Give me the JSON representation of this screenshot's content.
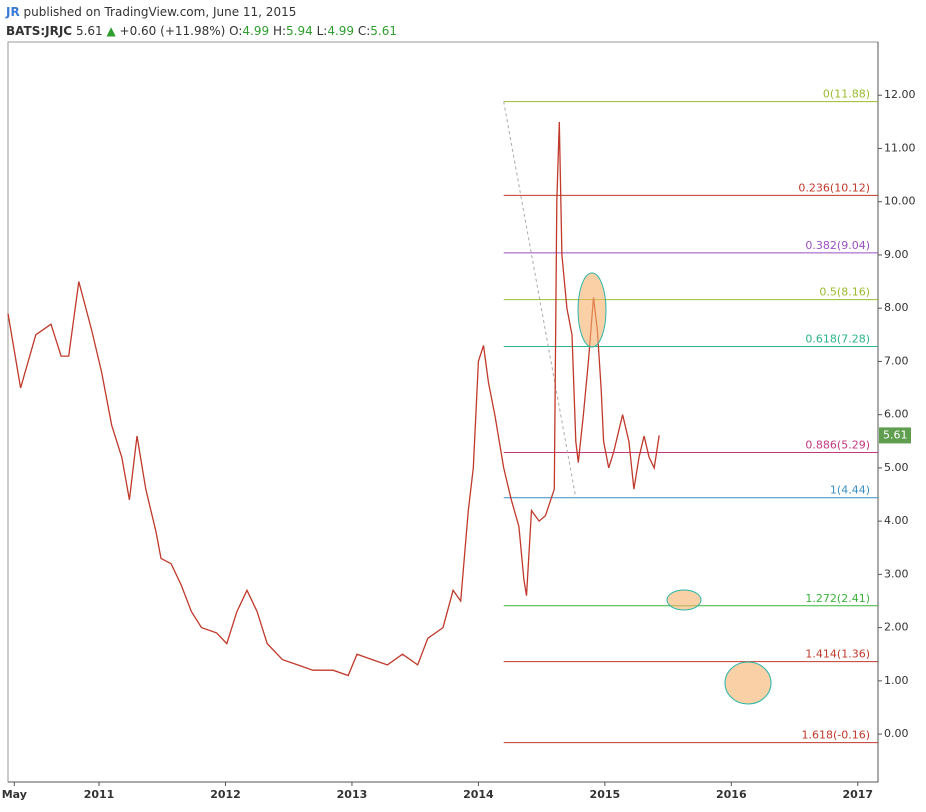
{
  "header": {
    "author": "JR",
    "published": "published on TradingView.com, June 11, 2015",
    "symbol": "BATS:JRJC",
    "last": "5.61",
    "arrow": "▲",
    "change": "+0.60 (+11.98%)",
    "open_label": "O:",
    "open": "4.99",
    "high_label": "H:",
    "high": "5.94",
    "low_label": "L:",
    "low": "4.99",
    "close_label": "C:",
    "close": "5.61"
  },
  "chart_data": {
    "type": "line",
    "x": [
      2010.28,
      2010.38,
      2010.5,
      2010.62,
      2010.7,
      2010.76,
      2010.84,
      2010.94,
      2011.02,
      2011.1,
      2011.18,
      2011.24,
      2011.3,
      2011.37,
      2011.45,
      2011.49,
      2011.57,
      2011.65,
      2011.73,
      2011.81,
      2011.93,
      2012.01,
      2012.09,
      2012.17,
      2012.25,
      2012.33,
      2012.45,
      2012.57,
      2012.69,
      2012.85,
      2012.97,
      2013.04,
      2013.16,
      2013.28,
      2013.4,
      2013.52,
      2013.6,
      2013.72,
      2013.8,
      2013.86,
      2013.92,
      2013.96,
      2014.0,
      2014.04,
      2014.08,
      2014.13,
      2014.2,
      2014.26,
      2014.32,
      2014.36,
      2014.38,
      2014.42,
      2014.48,
      2014.53,
      2014.6,
      2014.62,
      2014.64,
      2014.66,
      2014.7,
      2014.74,
      2014.77,
      2014.79,
      2014.83,
      2014.87,
      2014.91,
      2014.94,
      2014.97,
      2014.99,
      2015.03,
      2015.07,
      2015.14,
      2015.19,
      2015.23,
      2015.27,
      2015.31,
      2015.35,
      2015.39,
      2015.43
    ],
    "series": [
      {
        "color": "#c0392b",
        "values": [
          7.9,
          6.5,
          7.5,
          7.7,
          7.1,
          7.1,
          8.5,
          7.6,
          6.8,
          5.8,
          5.2,
          4.4,
          5.6,
          4.6,
          3.8,
          3.3,
          3.2,
          2.8,
          2.3,
          2.0,
          1.9,
          1.7,
          2.3,
          2.7,
          2.3,
          1.7,
          1.4,
          1.3,
          1.2,
          1.2,
          1.1,
          1.5,
          1.4,
          1.3,
          1.5,
          1.3,
          1.8,
          2.0,
          2.7,
          2.5,
          4.2,
          5.0,
          7.0,
          7.3,
          6.6,
          6.0,
          5.0,
          4.4,
          3.9,
          2.9,
          2.6,
          4.2,
          4.0,
          4.1,
          4.6,
          10.0,
          11.5,
          9.0,
          8.0,
          7.5,
          5.5,
          5.1,
          6.0,
          7.0,
          8.2,
          7.6,
          6.5,
          5.5,
          5.0,
          5.3,
          6.0,
          5.5,
          4.6,
          5.2,
          5.6,
          5.2,
          5.0,
          5.61
        ]
      }
    ],
    "xlim": [
      2010.28,
      2017.16
    ],
    "ylim": [
      -0.9,
      13.0
    ],
    "xticks": [
      {
        "value": 2010.33,
        "label": "May"
      },
      2011,
      2012,
      2013,
      2014,
      2015,
      2016,
      2017
    ],
    "yticks": [
      {
        "value": 0,
        "label": "0.00"
      },
      {
        "value": 1,
        "label": "1.00"
      },
      {
        "value": 2,
        "label": "2.00"
      },
      {
        "value": 3,
        "label": "3.00"
      },
      {
        "value": 4,
        "label": "4.00"
      },
      {
        "value": 5,
        "label": "5.00"
      },
      {
        "value": 6,
        "label": "6.00"
      },
      {
        "value": 7,
        "label": "7.00"
      },
      {
        "value": 8,
        "label": "8.00"
      },
      {
        "value": 9,
        "label": "9.00"
      },
      {
        "value": 10,
        "label": "10.00"
      },
      {
        "value": 11,
        "label": "11.00"
      },
      {
        "value": 12,
        "label": "12.00"
      }
    ],
    "last_price": {
      "value": 5.61,
      "label": "5.61",
      "color": "#5e9e4e"
    },
    "fib_x_start": 2014.2,
    "fib_levels": [
      {
        "value": 11.88,
        "label": "0(11.88)",
        "color": "#9bbb2e"
      },
      {
        "value": 10.12,
        "label": "0.236(10.12)",
        "color": "#c0392b"
      },
      {
        "value": 9.04,
        "label": "0.382(9.04)",
        "color": "#9b4fc0"
      },
      {
        "value": 8.16,
        "label": "0.5(8.16)",
        "color": "#9bbb2e"
      },
      {
        "value": 7.28,
        "label": "0.618(7.28)",
        "color": "#2bb58a"
      },
      {
        "value": 5.29,
        "label": "0.886(5.29)",
        "color": "#c0397f"
      },
      {
        "value": 4.44,
        "label": "1(4.44)",
        "color": "#3a8fc0"
      },
      {
        "value": 2.41,
        "label": "1.272(2.41)",
        "color": "#3cb33c"
      },
      {
        "value": 1.36,
        "label": "1.414(1.36)",
        "color": "#c0392b"
      },
      {
        "value": -0.16,
        "label": "1.618(-0.16)",
        "color": "#c0392b"
      }
    ],
    "trendline": {
      "x": [
        2014.2,
        2014.77
      ],
      "y": [
        11.88,
        4.44
      ]
    }
  }
}
